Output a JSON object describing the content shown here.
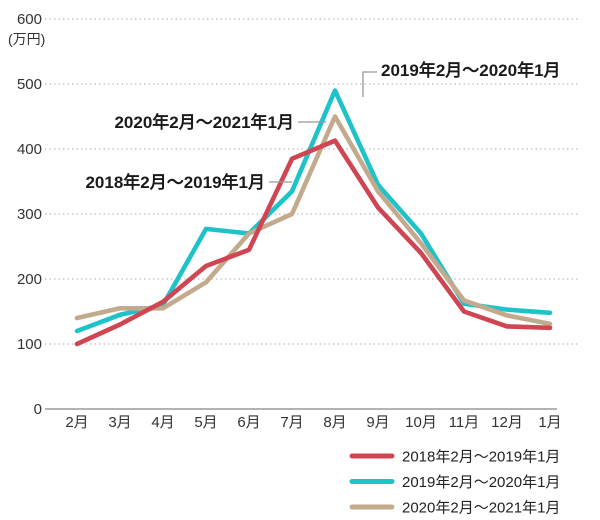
{
  "chart_data": {
    "type": "line",
    "title": "",
    "unit_label": "(万円)",
    "xlabel": "",
    "ylabel": "万円",
    "ylim": [
      0,
      600
    ],
    "grid": "dotted-horizontal",
    "legend_position": "bottom-right",
    "categories": [
      "2月",
      "3月",
      "4月",
      "5月",
      "6月",
      "7月",
      "8月",
      "9月",
      "10月",
      "11月",
      "12月",
      "1月"
    ],
    "y_ticks": [
      {
        "label": "600",
        "value": 600
      },
      {
        "label": "500",
        "value": 500
      },
      {
        "label": "400",
        "value": 400
      },
      {
        "label": "300",
        "value": 300
      },
      {
        "label": "200",
        "value": 200
      },
      {
        "label": "100",
        "value": 100
      },
      {
        "label": "0",
        "value": 0
      }
    ],
    "series": [
      {
        "name": "2018年2月〜2019年1月",
        "color": "#d04552",
        "values": [
          100,
          130,
          165,
          220,
          245,
          385,
          413,
          310,
          240,
          150,
          127,
          125
        ]
      },
      {
        "name": "2019年2月〜2020年1月",
        "color": "#1ec3c9",
        "values": [
          120,
          145,
          160,
          277,
          270,
          335,
          490,
          345,
          270,
          162,
          153,
          148
        ]
      },
      {
        "name": "2020年2月〜2021年1月",
        "color": "#c3aa8c",
        "values": [
          140,
          155,
          155,
          195,
          270,
          300,
          450,
          335,
          255,
          167,
          144,
          131
        ]
      }
    ],
    "annotations": [
      {
        "text": "2019年2月〜2020年1月",
        "target_series": "2019年2月〜2020年1月"
      },
      {
        "text": "2020年2月〜2021年1月",
        "target_series": "2020年2月〜2021年1月"
      },
      {
        "text": "2018年2月〜2019年1月",
        "target_series": "2018年2月〜2019年1月"
      }
    ]
  }
}
